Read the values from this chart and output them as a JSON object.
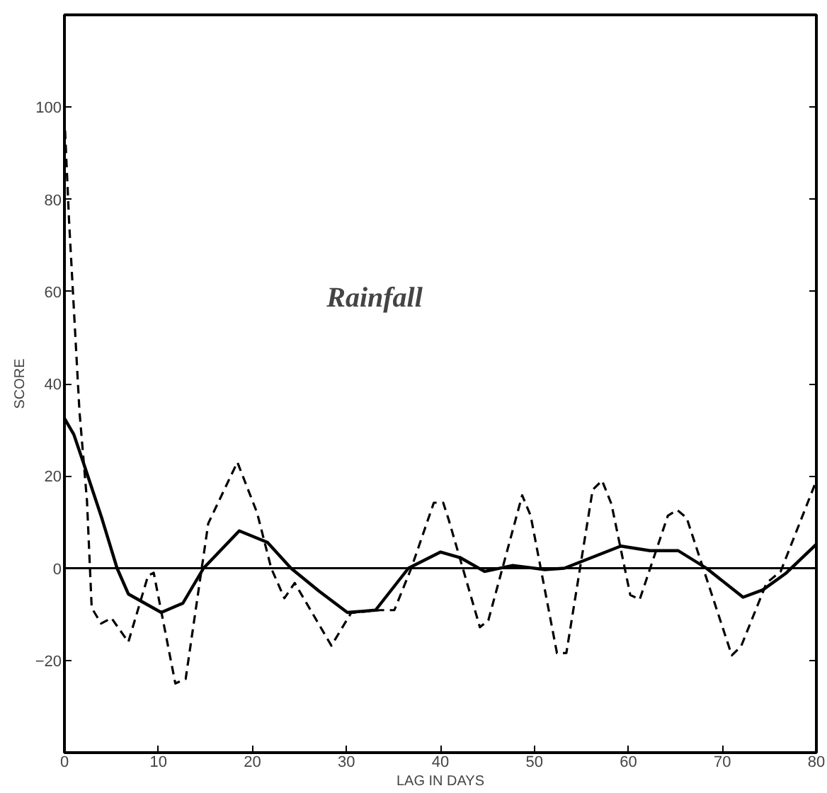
{
  "chart_data": {
    "type": "line",
    "xlabel": "LAG IN DAYS",
    "ylabel": "SCORE",
    "annotations": [
      "Rainfall"
    ],
    "xlim": [
      0,
      80
    ],
    "ylim": [
      -40,
      120
    ],
    "xticks": [
      0,
      10,
      20,
      30,
      40,
      50,
      60,
      70,
      80
    ],
    "yticks": [
      -20,
      0,
      20,
      40,
      60,
      80,
      100
    ],
    "grid": false,
    "marker": "none",
    "ref_lines": [
      {
        "axis": "y",
        "value": 0,
        "color": "#000000",
        "line_style": "solid"
      }
    ],
    "series": [
      {
        "color": "#000000",
        "line_style": "solid",
        "x": [
          0,
          1,
          2,
          4,
          5.6,
          6.8,
          10.3,
          12.6,
          14.8,
          18.6,
          21.6,
          24.1,
          27.1,
          30.1,
          33.1,
          36.6,
          40,
          42.1,
          44.7,
          47.7,
          51.1,
          53.2,
          59.2,
          62.3,
          65.3,
          68.3,
          72.2,
          74.3,
          76.7,
          80
        ],
        "values": [
          32.5,
          29,
          23,
          10.7,
          0,
          -5.6,
          -9.6,
          -7.6,
          0,
          8.1,
          5.6,
          0,
          -5,
          -9.6,
          -9.1,
          0,
          3.5,
          2.3,
          -0.7,
          0.6,
          -0.3,
          0,
          4.8,
          3.8,
          3.8,
          0,
          -6.3,
          -4.7,
          -1.2,
          5.2
        ]
      },
      {
        "color": "#000000",
        "line_style": "dashed",
        "x": [
          0,
          0.5,
          1.6,
          2.4,
          2.9,
          3.9,
          5,
          6.8,
          8.9,
          9.5,
          11.8,
          12.9,
          15.3,
          18.4,
          20.5,
          22,
          23.4,
          24.5,
          28.4,
          30.5,
          33.6,
          35.1,
          36.9,
          39.3,
          40.3,
          40.9,
          44.2,
          45.1,
          48.7,
          49.6,
          52.4,
          53.4,
          56.2,
          57.2,
          58.2,
          60.2,
          61.2,
          64.2,
          65.2,
          66.2,
          71,
          72,
          74.7,
          76.2,
          80
        ],
        "values": [
          98,
          75,
          34,
          14.6,
          -8.6,
          -12,
          -10.8,
          -16,
          -1.6,
          -1,
          -25,
          -24,
          9.7,
          23,
          12,
          0,
          -6.5,
          -3.2,
          -16.8,
          -9.7,
          -9.1,
          -9.1,
          0,
          14.2,
          14.2,
          10.4,
          -12.8,
          -11.3,
          15.8,
          11.4,
          -18.4,
          -18.4,
          17,
          19,
          13.9,
          -5.8,
          -6.8,
          11.4,
          12.6,
          10.9,
          -18.9,
          -16.9,
          -3.2,
          -0.7,
          19
        ]
      }
    ]
  }
}
